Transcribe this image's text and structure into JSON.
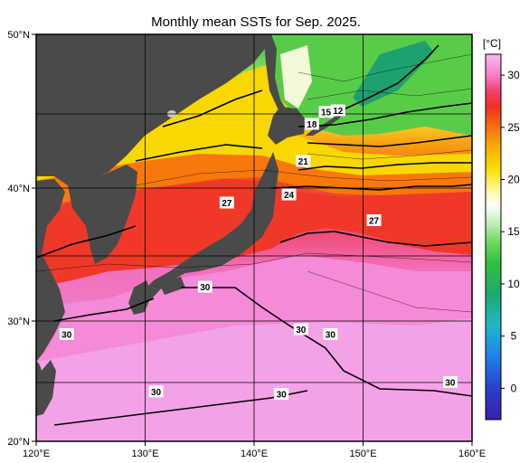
{
  "title": "Monthly mean SSTs for Sep. 2025.",
  "units": "[°C]",
  "lon_ticks": [
    "120°E",
    "130°E",
    "140°E",
    "150°E",
    "160°E"
  ],
  "lat_ticks": [
    "50°N",
    "40°N",
    "30°N",
    "20°N"
  ],
  "colorbar": {
    "range": [
      -3,
      32
    ],
    "ticks": [
      "30",
      "25",
      "20",
      "15",
      "10",
      "5",
      "0"
    ],
    "tick_values": [
      30,
      25,
      20,
      15,
      10,
      5,
      0
    ],
    "stops": [
      {
        "v": -3,
        "color": "#3a1fa8"
      },
      {
        "v": 0,
        "color": "#2a3fd0"
      },
      {
        "v": 3,
        "color": "#1f80e8"
      },
      {
        "v": 6,
        "color": "#1fb8c8"
      },
      {
        "v": 9,
        "color": "#20a870"
      },
      {
        "v": 12,
        "color": "#30c040"
      },
      {
        "v": 14,
        "color": "#70d860"
      },
      {
        "v": 16,
        "color": "#c8f0c0"
      },
      {
        "v": 17.5,
        "color": "#ffffff"
      },
      {
        "v": 19,
        "color": "#fff8a0"
      },
      {
        "v": 21,
        "color": "#f8e000"
      },
      {
        "v": 23,
        "color": "#f8b000"
      },
      {
        "v": 25,
        "color": "#f87010"
      },
      {
        "v": 27,
        "color": "#f03020"
      },
      {
        "v": 28.5,
        "color": "#f04070"
      },
      {
        "v": 30,
        "color": "#f480c8"
      },
      {
        "v": 32,
        "color": "#f8b8f4"
      }
    ]
  },
  "contour_labels": [
    {
      "text": "12",
      "lon": 147.7,
      "lat": 45.2
    },
    {
      "text": "15",
      "lon": 146.6,
      "lat": 45.1
    },
    {
      "text": "18",
      "lon": 145.3,
      "lat": 44.3
    },
    {
      "text": "21",
      "lon": 144.5,
      "lat": 41.8
    },
    {
      "text": "24",
      "lon": 143.2,
      "lat": 39.5
    },
    {
      "text": "27",
      "lon": 137.5,
      "lat": 38.9
    },
    {
      "text": "27",
      "lon": 151.0,
      "lat": 37.6
    },
    {
      "text": "30",
      "lon": 135.5,
      "lat": 32.6
    },
    {
      "text": "30",
      "lon": 122.8,
      "lat": 28.9
    },
    {
      "text": "30",
      "lon": 144.3,
      "lat": 29.3
    },
    {
      "text": "30",
      "lon": 147.0,
      "lat": 28.9
    },
    {
      "text": "30",
      "lon": 158.0,
      "lat": 25.0
    },
    {
      "text": "30",
      "lon": 131.0,
      "lat": 24.2
    },
    {
      "text": "30",
      "lon": 142.5,
      "lat": 24.0
    }
  ]
}
